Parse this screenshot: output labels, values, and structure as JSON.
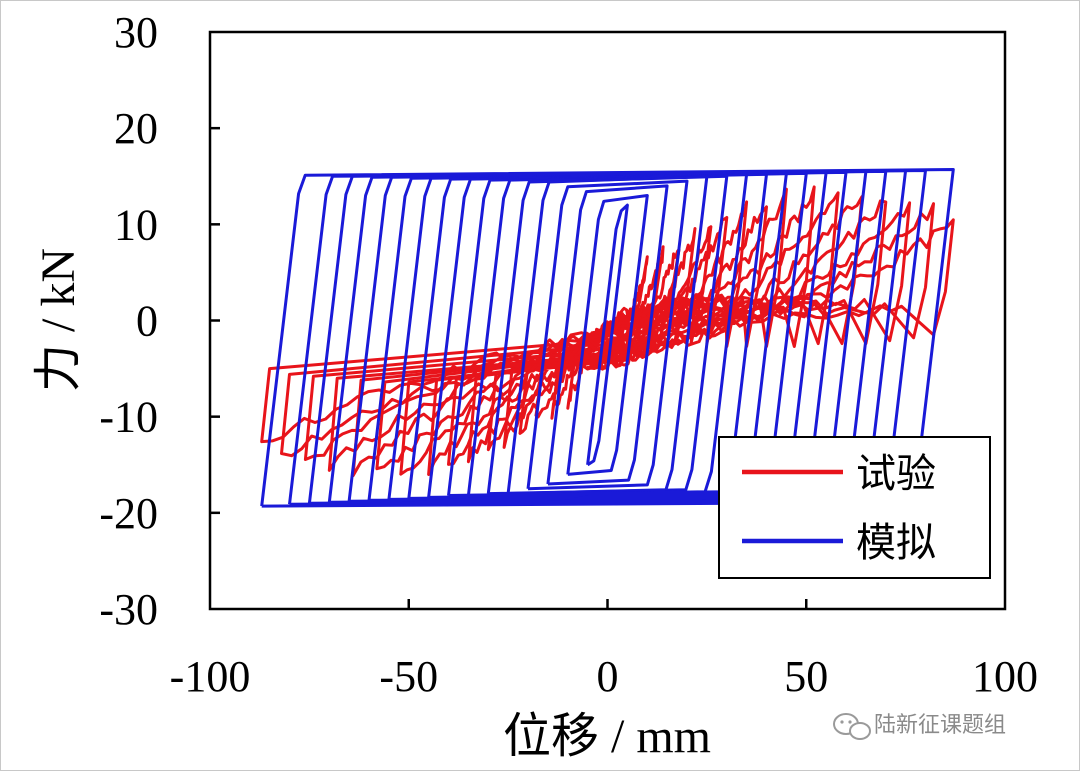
{
  "chart_data": {
    "type": "line",
    "xlabel": "位移 / mm",
    "ylabel": "力 / kN",
    "xlim": [
      -100,
      100
    ],
    "ylim": [
      -30,
      30
    ],
    "xticks": [
      -100,
      -50,
      0,
      50,
      100
    ],
    "yticks": [
      30,
      20,
      10,
      0,
      -10,
      -20,
      -30
    ],
    "xtick_labels": [
      "-100",
      "-50",
      "0",
      "50",
      "100"
    ],
    "ytick_labels": [
      "30",
      "20",
      "10",
      "0",
      "-10",
      "-20",
      "-30"
    ],
    "grid": false,
    "legend_position": "bottom-right",
    "series": [
      {
        "name": "试验",
        "color": "#e8141b",
        "cycles": [
          {
            "amp": 10,
            "fpeak": 6,
            "fres": 2
          },
          {
            "amp": 14,
            "fpeak": 7,
            "fres": 2.5
          },
          {
            "amp": 18,
            "fpeak": 8,
            "fres": 3
          },
          {
            "amp": 22,
            "fpeak": 9,
            "fres": 3
          },
          {
            "amp": 26,
            "fpeak": 10,
            "fres": 3.5
          },
          {
            "amp": 30,
            "fpeak": 11,
            "fres": 3.5
          },
          {
            "amp": 35,
            "fpeak": 12,
            "fres": 4
          },
          {
            "amp": 40,
            "fpeak": 12.5,
            "fres": 4
          },
          {
            "amp": 45,
            "fpeak": 13,
            "fres": 4
          },
          {
            "amp": 52,
            "fpeak": 13.5,
            "fres": 4
          },
          {
            "amp": 58,
            "fpeak": 13.5,
            "fres": 3.5
          },
          {
            "amp": 64,
            "fpeak": 13,
            "fres": 3.5
          },
          {
            "amp": 70,
            "fpeak": 12.5,
            "fres": 3.5
          },
          {
            "amp": 76,
            "fpeak": 12,
            "fres": 3
          },
          {
            "amp": 82,
            "fpeak": 11.5,
            "fres": 2.5
          },
          {
            "amp": 87,
            "fpeak": 10,
            "fres": 2
          }
        ]
      },
      {
        "name": "模拟",
        "color": "#1a1ad8",
        "cycles": [
          {
            "amp": 5,
            "fpos": 12,
            "fneg": -15
          },
          {
            "amp": 10,
            "fpos": 13,
            "fneg": -16
          },
          {
            "amp": 15,
            "fpos": 14,
            "fneg": -17
          },
          {
            "amp": 20,
            "fpos": 14.5,
            "fneg": -17.5
          },
          {
            "amp": 25,
            "fpos": 15,
            "fneg": -18
          },
          {
            "amp": 30,
            "fpos": 15,
            "fneg": -18
          },
          {
            "amp": 35,
            "fpos": 15.2,
            "fneg": -18.2
          },
          {
            "amp": 40,
            "fpos": 15.2,
            "fneg": -18.2
          },
          {
            "amp": 45,
            "fpos": 15.3,
            "fneg": -18.4
          },
          {
            "amp": 50,
            "fpos": 15.3,
            "fneg": -18.5
          },
          {
            "amp": 55,
            "fpos": 15.4,
            "fneg": -18.6
          },
          {
            "amp": 60,
            "fpos": 15.4,
            "fneg": -18.7
          },
          {
            "amp": 65,
            "fpos": 15.5,
            "fneg": -18.8
          },
          {
            "amp": 70,
            "fpos": 15.5,
            "fneg": -18.9
          },
          {
            "amp": 75,
            "fpos": 15.6,
            "fneg": -19
          },
          {
            "amp": 80,
            "fpos": 15.6,
            "fneg": -19.1
          },
          {
            "amp": 87,
            "fpos": 15.7,
            "fneg": -19.3
          }
        ]
      }
    ]
  },
  "watermark": {
    "text": "陆新征课题组",
    "icon": "wechat-icon"
  }
}
